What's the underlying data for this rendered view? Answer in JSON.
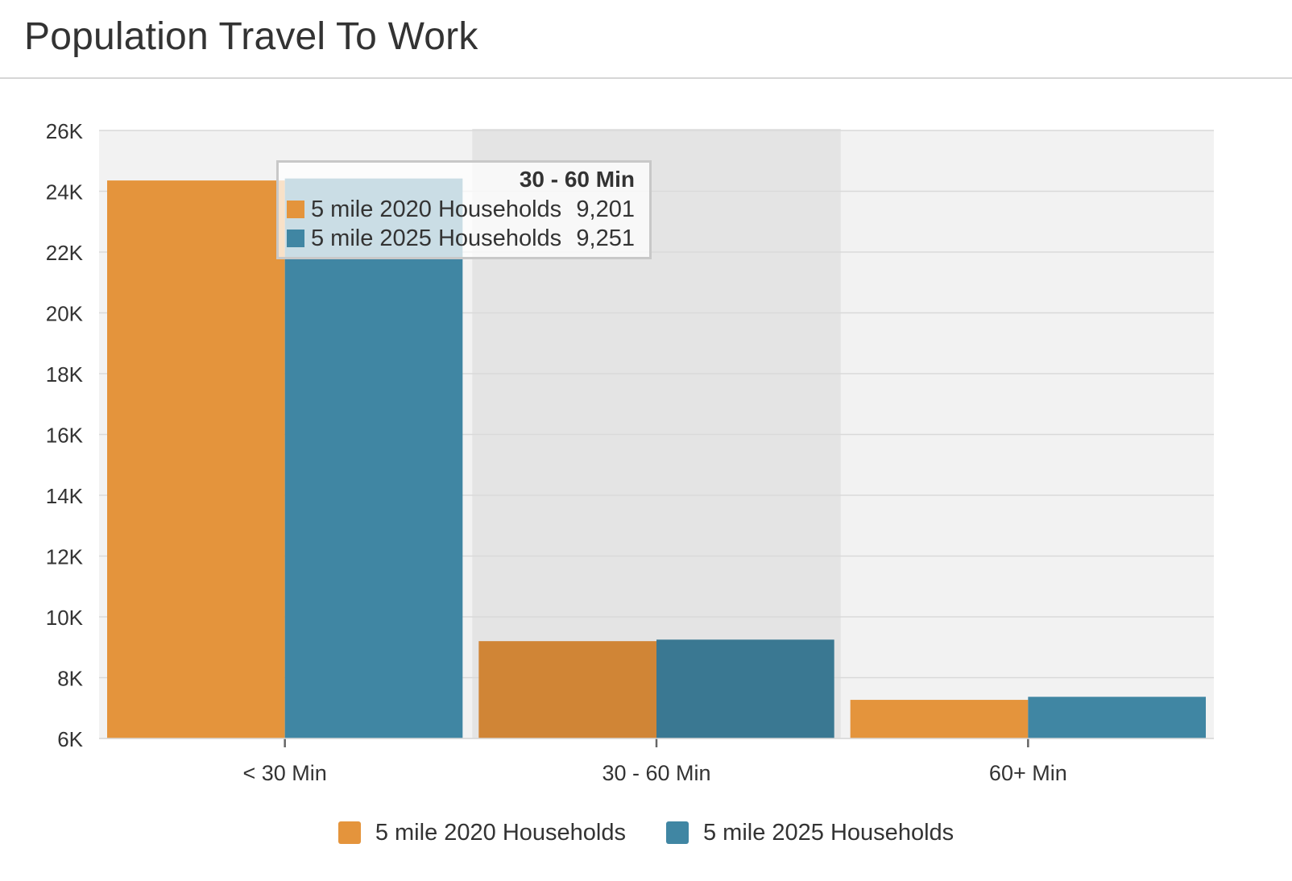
{
  "title": "Population Travel To Work",
  "colors": {
    "series_2020": "#e4943c",
    "series_2025": "#4086a3",
    "series_2020_hover": "#d08536",
    "series_2025_hover": "#3a7892",
    "plot_bg": "#f2f2f2",
    "hover_band": "#e4e4e4",
    "grid": "#d9d9d9"
  },
  "chart_data": {
    "type": "bar",
    "categories": [
      "< 30 Min",
      "30 - 60 Min",
      "60+ Min"
    ],
    "series": [
      {
        "name": "5 mile 2020 Households",
        "values": [
          24355,
          9201,
          7270
        ]
      },
      {
        "name": "5 mile 2025 Households",
        "values": [
          24420,
          9251,
          7370
        ]
      }
    ],
    "ylim": [
      6000,
      26000
    ],
    "yticks": [
      6000,
      8000,
      10000,
      12000,
      14000,
      16000,
      18000,
      20000,
      22000,
      24000,
      26000
    ],
    "ytick_labels": [
      "6K",
      "8K",
      "10K",
      "12K",
      "14K",
      "16K",
      "18K",
      "20K",
      "22K",
      "24K",
      "26K"
    ],
    "xlabel": "",
    "ylabel": "",
    "grid": true,
    "legend_position": "bottom",
    "highlighted_category": 1
  },
  "legend": {
    "items": [
      {
        "label": "5 mile 2020 Households"
      },
      {
        "label": "5 mile 2025 Households"
      }
    ]
  },
  "tooltip": {
    "header": "30 - 60 Min",
    "rows": [
      {
        "label": "5 mile 2020 Households",
        "value": "9,201"
      },
      {
        "label": "5 mile 2025 Households",
        "value": "9,251"
      }
    ]
  }
}
